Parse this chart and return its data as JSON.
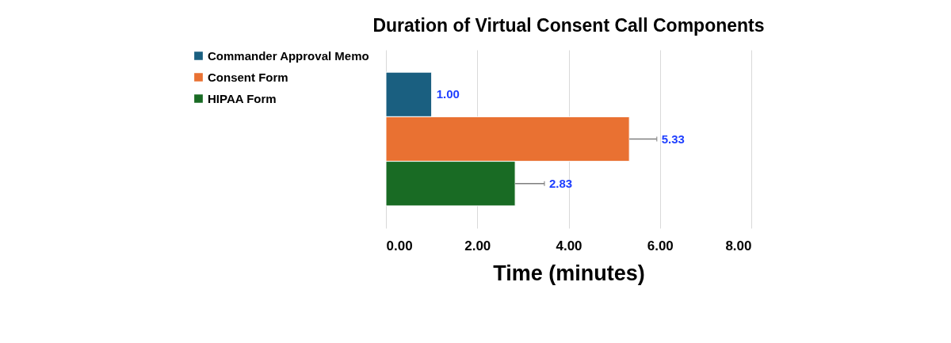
{
  "chart_data": {
    "type": "bar",
    "orientation": "horizontal",
    "title": "Duration of Virtual Consent Call Components",
    "xlabel": "Time (minutes)",
    "categories": [
      null
    ],
    "series": [
      {
        "name": "Commander Approval Memo",
        "color": "#1a5f80",
        "values": [
          1.0
        ],
        "errors": [
          null
        ],
        "value_labels": [
          "1.00"
        ]
      },
      {
        "name": "Consent Form",
        "color": "#e97132",
        "values": [
          5.33
        ],
        "errors": [
          [
            5.33,
            5.93
          ]
        ],
        "value_labels": [
          "5.33"
        ]
      },
      {
        "name": "HIPAA Form",
        "color": "#196b24",
        "values": [
          2.83
        ],
        "errors": [
          [
            2.83,
            3.47
          ]
        ],
        "value_labels": [
          "2.83"
        ]
      }
    ],
    "xlim": [
      0,
      8
    ],
    "xticks": [
      {
        "value": 0,
        "label": "0.00"
      },
      {
        "value": 2,
        "label": "2.00"
      },
      {
        "value": 4,
        "label": "4.00"
      },
      {
        "value": 6,
        "label": "6.00"
      },
      {
        "value": 8,
        "label": "8.00"
      }
    ],
    "grid": "x",
    "legend": "left"
  }
}
